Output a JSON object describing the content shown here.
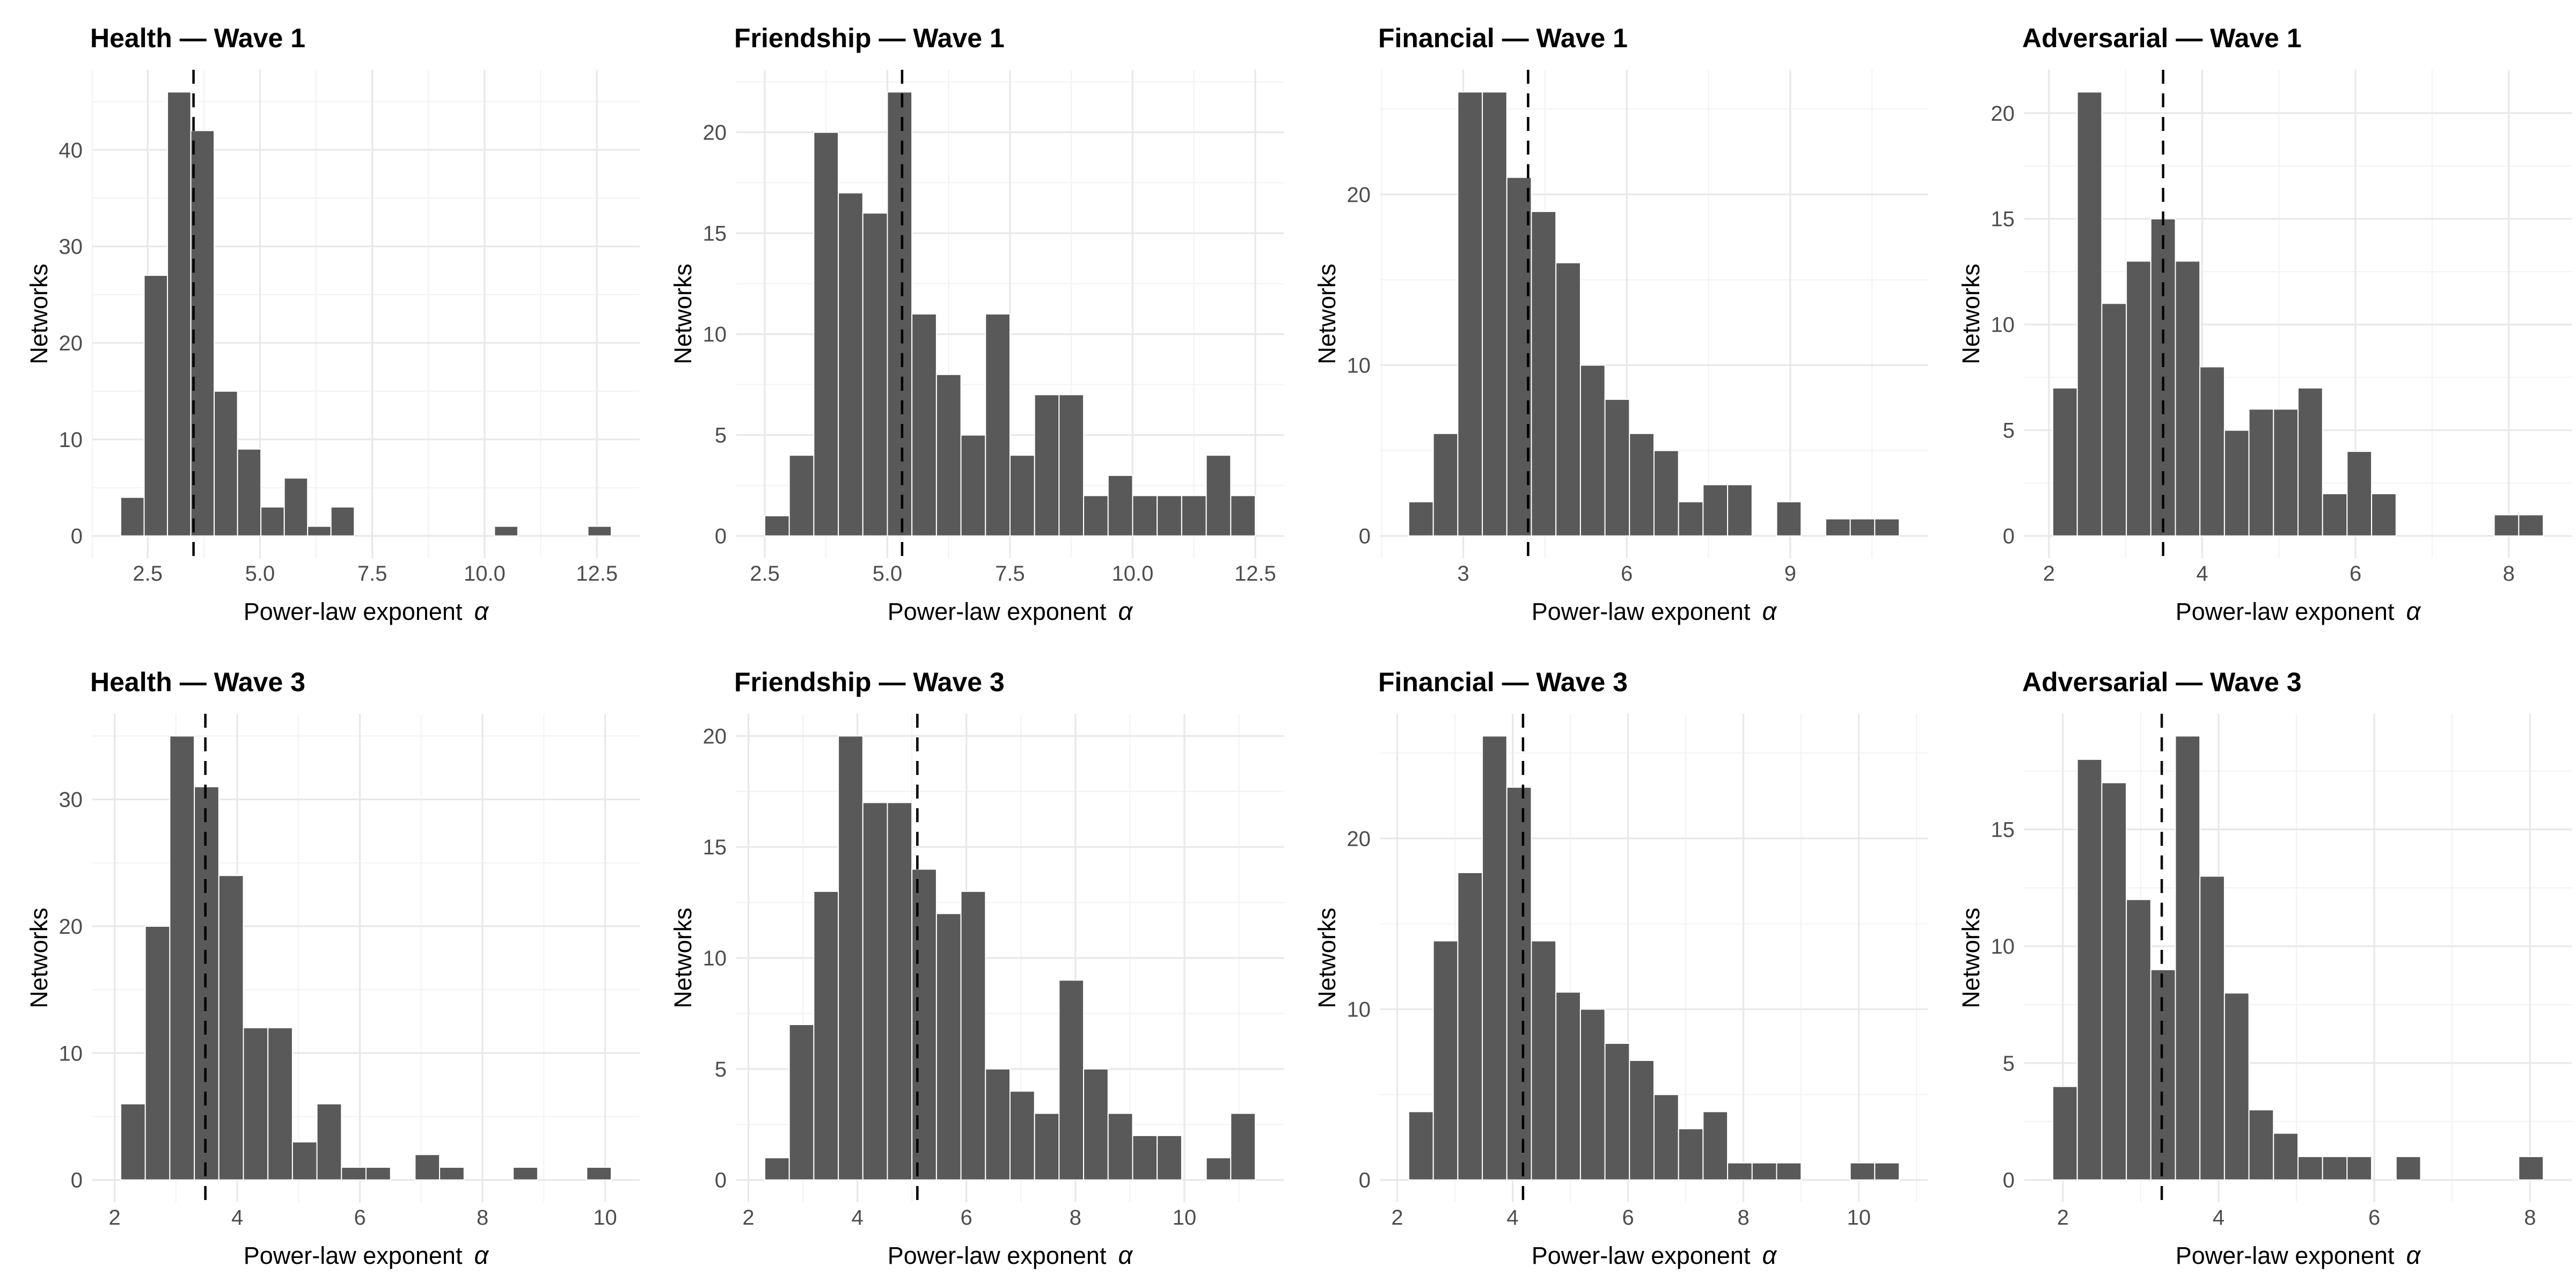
{
  "figure": {
    "ylabel": "Networks",
    "xlabel": "Power-law exponent",
    "xlabel_symbol": "α",
    "colors": {
      "background": "#FFFFFF",
      "bar_fill": "#595959",
      "bar_separator": "#FFFFFF",
      "grid_major": "#E8E8E8",
      "grid_minor": "#F3F3F3",
      "tick_text": "#4D4D4D",
      "title_text": "#000000",
      "axis_label_text": "#000000",
      "dashed_line": "#000000"
    }
  },
  "chart_data": [
    {
      "type": "bar",
      "title": "Health — Wave 1",
      "group": "Health",
      "wave": "Wave 1",
      "xlabel": "Power-law exponent α",
      "ylabel": "Networks",
      "bin_start": 1.9,
      "bin_width": 0.52,
      "counts": [
        4,
        27,
        46,
        42,
        15,
        9,
        3,
        6,
        1,
        3,
        0,
        0,
        0,
        0,
        0,
        0,
        1,
        0,
        0,
        0,
        1
      ],
      "dashed_vline_x": 3.52,
      "x_ticks": [
        2.5,
        5.0,
        7.5,
        10.0,
        12.5
      ],
      "x_tick_labels": [
        "2.5",
        "5.0",
        "7.5",
        "10.0",
        "12.5"
      ],
      "y_ticks": [
        0,
        10,
        20,
        30,
        40
      ],
      "y_tick_labels": [
        "0",
        "10",
        "20",
        "30",
        "40"
      ],
      "y_max": 46,
      "grid": true,
      "legend": "none"
    },
    {
      "type": "bar",
      "title": "Friendship — Wave 1",
      "group": "Friendship",
      "wave": "Wave 1",
      "xlabel": "Power-law exponent α",
      "ylabel": "Networks",
      "bin_start": 2.5,
      "bin_width": 0.5,
      "counts": [
        1,
        4,
        20,
        17,
        16,
        22,
        11,
        8,
        5,
        11,
        4,
        7,
        7,
        2,
        3,
        2,
        2,
        2,
        4,
        2
      ],
      "dashed_vline_x": 5.3,
      "x_ticks": [
        2.5,
        5.0,
        7.5,
        10.0,
        12.5
      ],
      "x_tick_labels": [
        "2.5",
        "5.0",
        "7.5",
        "10.0",
        "12.5"
      ],
      "y_ticks": [
        0,
        5,
        10,
        15,
        20
      ],
      "y_tick_labels": [
        "0",
        "5",
        "10",
        "15",
        "20"
      ],
      "y_max": 22,
      "grid": true,
      "legend": "none"
    },
    {
      "type": "bar",
      "title": "Financial — Wave 1",
      "group": "Financial",
      "wave": "Wave 1",
      "xlabel": "Power-law exponent α",
      "ylabel": "Networks",
      "bin_start": 2.0,
      "bin_width": 0.45,
      "counts": [
        2,
        6,
        26,
        26,
        21,
        19,
        16,
        10,
        8,
        6,
        5,
        2,
        3,
        3,
        0,
        2,
        0,
        1,
        1,
        1
      ],
      "dashed_vline_x": 4.19,
      "x_ticks": [
        3,
        6,
        9
      ],
      "x_tick_labels": [
        "3",
        "6",
        "9"
      ],
      "y_ticks": [
        0,
        10,
        20
      ],
      "y_tick_labels": [
        "0",
        "10",
        "20"
      ],
      "y_max": 26,
      "grid": true,
      "legend": "none"
    },
    {
      "type": "bar",
      "title": "Adversarial — Wave 1",
      "group": "Adversarial",
      "wave": "Wave 1",
      "xlabel": "Power-law exponent α",
      "ylabel": "Networks",
      "bin_start": 2.05,
      "bin_width": 0.32,
      "counts": [
        7,
        21,
        11,
        13,
        15,
        13,
        8,
        5,
        6,
        6,
        7,
        2,
        4,
        2,
        0,
        0,
        0,
        0,
        1,
        1
      ],
      "dashed_vline_x": 3.49,
      "x_ticks": [
        2,
        4,
        6,
        8
      ],
      "x_tick_labels": [
        "2",
        "4",
        "6",
        "8"
      ],
      "y_ticks": [
        0,
        5,
        10,
        15,
        20
      ],
      "y_tick_labels": [
        "0",
        "5",
        "10",
        "15",
        "20"
      ],
      "y_max": 21,
      "grid": true,
      "legend": "none"
    },
    {
      "type": "bar",
      "title": "Health — Wave 3",
      "group": "Health",
      "wave": "Wave 3",
      "xlabel": "Power-law exponent α",
      "ylabel": "Networks",
      "bin_start": 2.1,
      "bin_width": 0.4,
      "counts": [
        6,
        20,
        35,
        31,
        24,
        12,
        12,
        3,
        6,
        1,
        1,
        0,
        2,
        1,
        0,
        0,
        1,
        0,
        0,
        1
      ],
      "dashed_vline_x": 3.48,
      "x_ticks": [
        2,
        4,
        6,
        8,
        10
      ],
      "x_tick_labels": [
        "2",
        "4",
        "6",
        "8",
        "10"
      ],
      "y_ticks": [
        0,
        10,
        20,
        30
      ],
      "y_tick_labels": [
        "0",
        "10",
        "20",
        "30"
      ],
      "y_max": 35,
      "grid": true,
      "legend": "none"
    },
    {
      "type": "bar",
      "title": "Friendship — Wave 3",
      "group": "Friendship",
      "wave": "Wave 3",
      "xlabel": "Power-law exponent α",
      "ylabel": "Networks",
      "bin_start": 2.3,
      "bin_width": 0.45,
      "counts": [
        1,
        7,
        13,
        20,
        17,
        17,
        14,
        12,
        13,
        5,
        4,
        3,
        9,
        5,
        3,
        2,
        2,
        0,
        1,
        3
      ],
      "dashed_vline_x": 5.1,
      "x_ticks": [
        2,
        4,
        6,
        8,
        10
      ],
      "x_tick_labels": [
        "2",
        "4",
        "6",
        "8",
        "10"
      ],
      "y_ticks": [
        0,
        5,
        10,
        15,
        20
      ],
      "y_tick_labels": [
        "0",
        "5",
        "10",
        "15",
        "20"
      ],
      "y_max": 20,
      "grid": true,
      "legend": "none"
    },
    {
      "type": "bar",
      "title": "Financial — Wave 3",
      "group": "Financial",
      "wave": "Wave 3",
      "xlabel": "Power-law exponent α",
      "ylabel": "Networks",
      "bin_start": 2.2,
      "bin_width": 0.425,
      "counts": [
        4,
        14,
        18,
        26,
        23,
        14,
        11,
        10,
        8,
        7,
        5,
        3,
        4,
        1,
        1,
        1,
        0,
        0,
        1,
        1
      ],
      "dashed_vline_x": 4.18,
      "x_ticks": [
        2,
        4,
        6,
        8,
        10
      ],
      "x_tick_labels": [
        "2",
        "4",
        "6",
        "8",
        "10"
      ],
      "y_ticks": [
        0,
        10,
        20
      ],
      "y_tick_labels": [
        "0",
        "10",
        "20"
      ],
      "y_max": 26,
      "grid": true,
      "legend": "none"
    },
    {
      "type": "bar",
      "title": "Adversarial — Wave 3",
      "group": "Adversarial",
      "wave": "Wave 3",
      "xlabel": "Power-law exponent α",
      "ylabel": "Networks",
      "bin_start": 1.87,
      "bin_width": 0.315,
      "counts": [
        4,
        18,
        17,
        12,
        9,
        19,
        13,
        8,
        3,
        2,
        1,
        1,
        1,
        0,
        1,
        0,
        0,
        0,
        0,
        1
      ],
      "dashed_vline_x": 3.27,
      "x_ticks": [
        2,
        4,
        6,
        8
      ],
      "x_tick_labels": [
        "2",
        "4",
        "6",
        "8"
      ],
      "y_ticks": [
        0,
        5,
        10,
        15
      ],
      "y_tick_labels": [
        "0",
        "5",
        "10",
        "15"
      ],
      "y_max": 19,
      "grid": true,
      "legend": "none"
    }
  ]
}
